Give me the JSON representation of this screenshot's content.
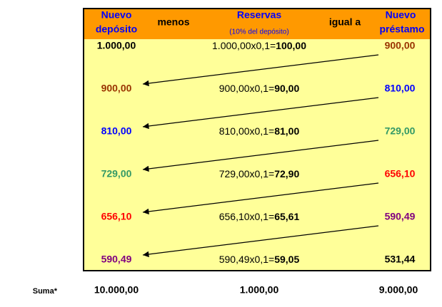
{
  "header": {
    "deposit": [
      "Nuevo",
      "depósito"
    ],
    "minus": "menos",
    "reserves": "Reservas",
    "reserves_note": "(10% del depósito)",
    "equals": "igual a",
    "loan": [
      "Nuevo",
      "préstamo"
    ]
  },
  "rows": [
    {
      "deposit": "1.000,00",
      "formula": "1.000,00x0,1=",
      "reserve": "100,00",
      "loan": "900,00"
    },
    {
      "deposit": "900,00",
      "formula": "900,00x0,1=",
      "reserve": "90,00",
      "loan": "810,00"
    },
    {
      "deposit": "810,00",
      "formula": "810,00x0,1=",
      "reserve": "81,00",
      "loan": "729,00"
    },
    {
      "deposit": "729,00",
      "formula": "729,00x0,1=",
      "reserve": "72,90",
      "loan": "656,10"
    },
    {
      "deposit": "656,10",
      "formula": "656,10x0,1=",
      "reserve": "65,61",
      "loan": "590,49"
    },
    {
      "deposit": "590,49",
      "formula": "590,49x0,1=",
      "reserve": "59,05",
      "loan": "531,44"
    }
  ],
  "sum": {
    "label": "Suma*",
    "deposit": "10.000,00",
    "reserve": "1.000,00",
    "loan": "9.000,00"
  }
}
